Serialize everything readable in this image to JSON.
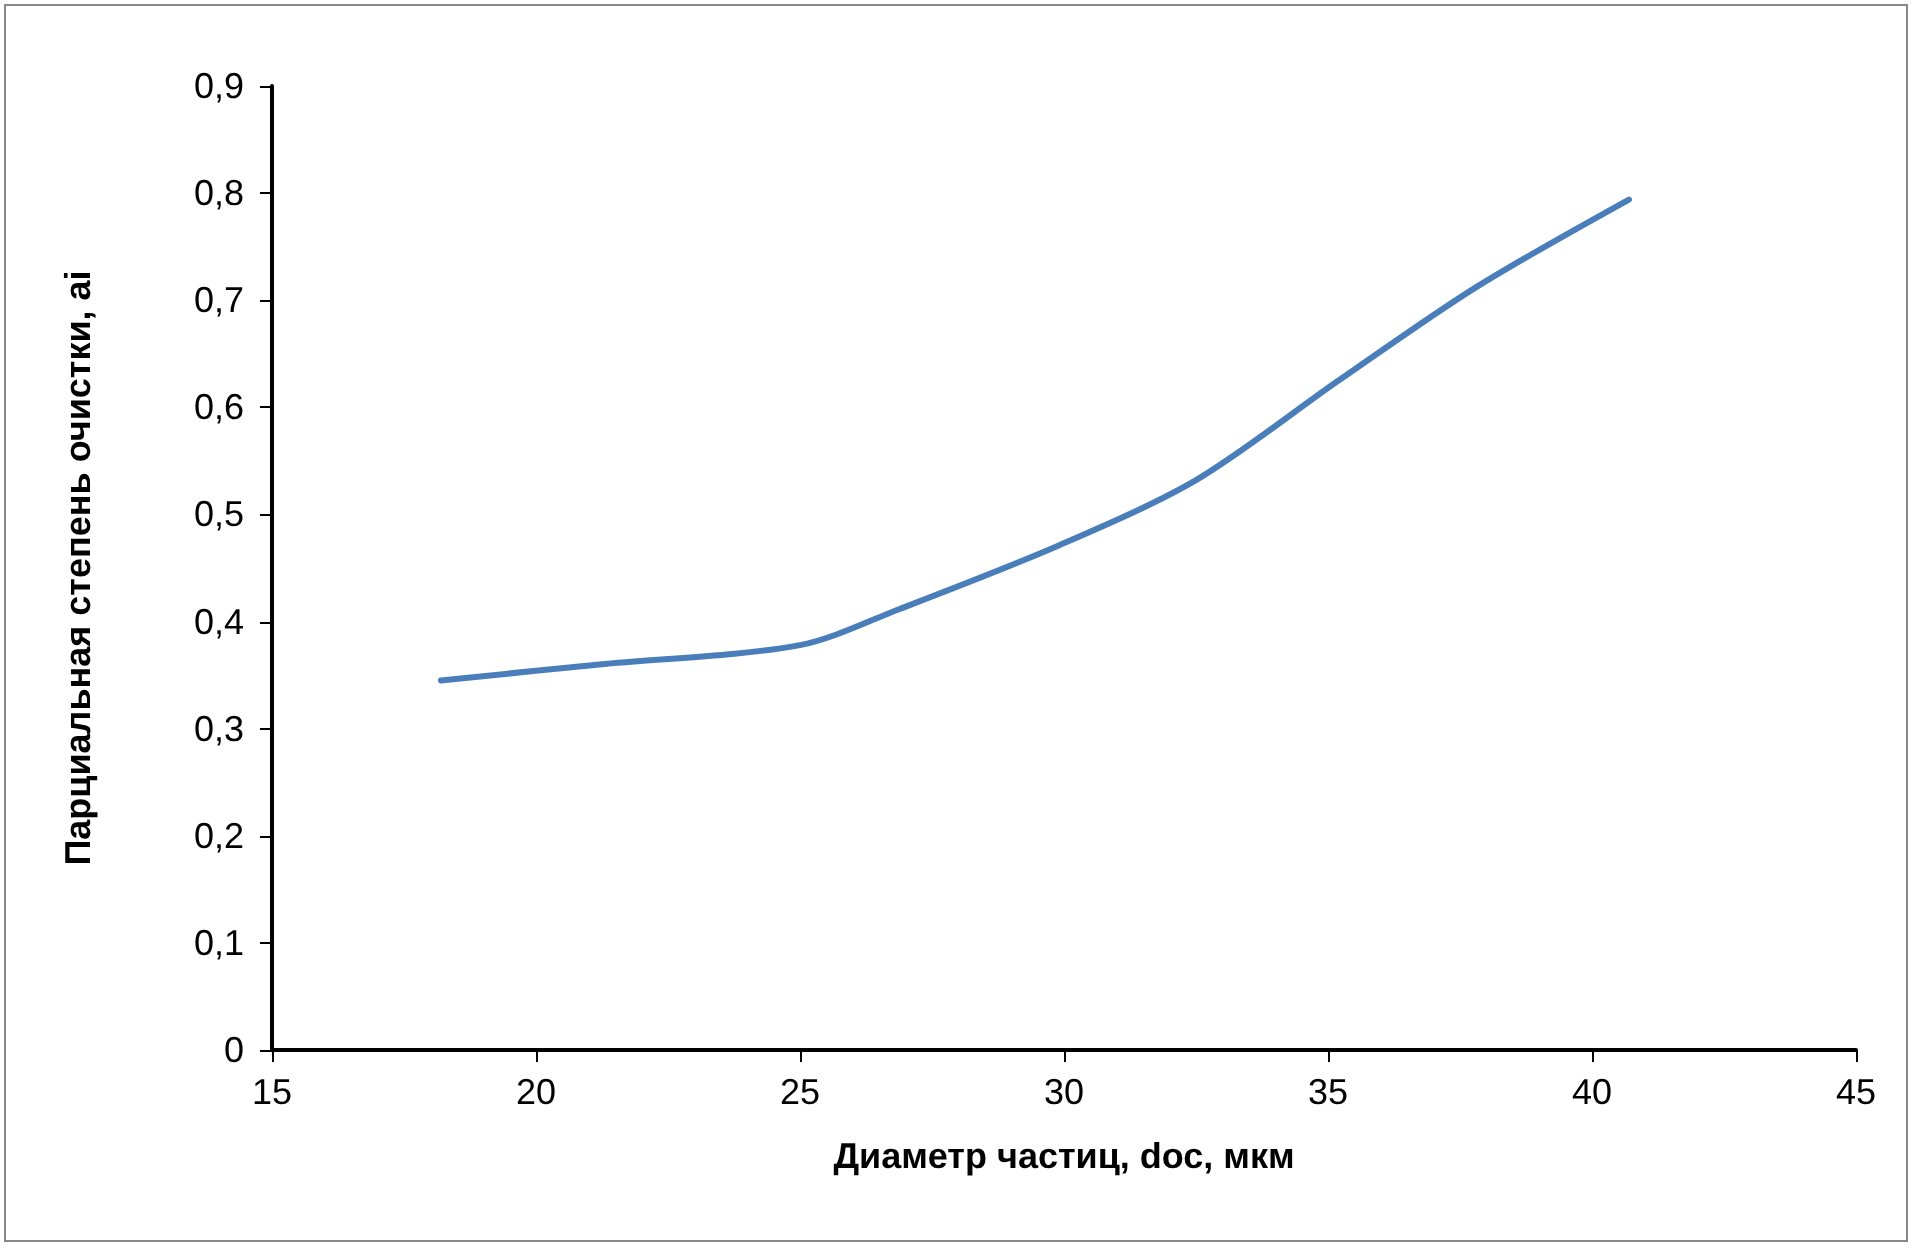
{
  "chart_data": {
    "type": "line",
    "xlabel": "Диаметр частиц, dос, мкм",
    "ylabel": "Парциальная степень очистки, ai",
    "x": [
      18.2,
      21.2,
      25,
      26.9,
      29.9,
      32.5,
      35.2,
      37.8,
      40.7
    ],
    "series": [
      {
        "color": "#4a7ebb",
        "values": [
          0.345,
          0.36,
          0.378,
          0.412,
          0.471,
          0.532,
          0.625,
          0.712,
          0.794
        ]
      }
    ],
    "xlim": [
      15,
      45
    ],
    "xticks": [
      15,
      20,
      25,
      30,
      35,
      40,
      45
    ],
    "ylim": [
      0,
      0.9
    ],
    "yticks": [
      0,
      {
        "value": 0.1,
        "label": "0,1"
      },
      {
        "value": 0.2,
        "label": "0,2"
      },
      {
        "value": 0.3,
        "label": "0,3"
      },
      {
        "value": 0.4,
        "label": "0,4"
      },
      {
        "value": 0.5,
        "label": "0,5"
      },
      {
        "value": 0.6,
        "label": "0,6"
      },
      {
        "value": 0.7,
        "label": "0,7"
      },
      {
        "value": 0.8,
        "label": "0,8"
      },
      {
        "value": 0.9,
        "label": "0,9"
      }
    ],
    "marker": "none",
    "line_style": "solid"
  }
}
